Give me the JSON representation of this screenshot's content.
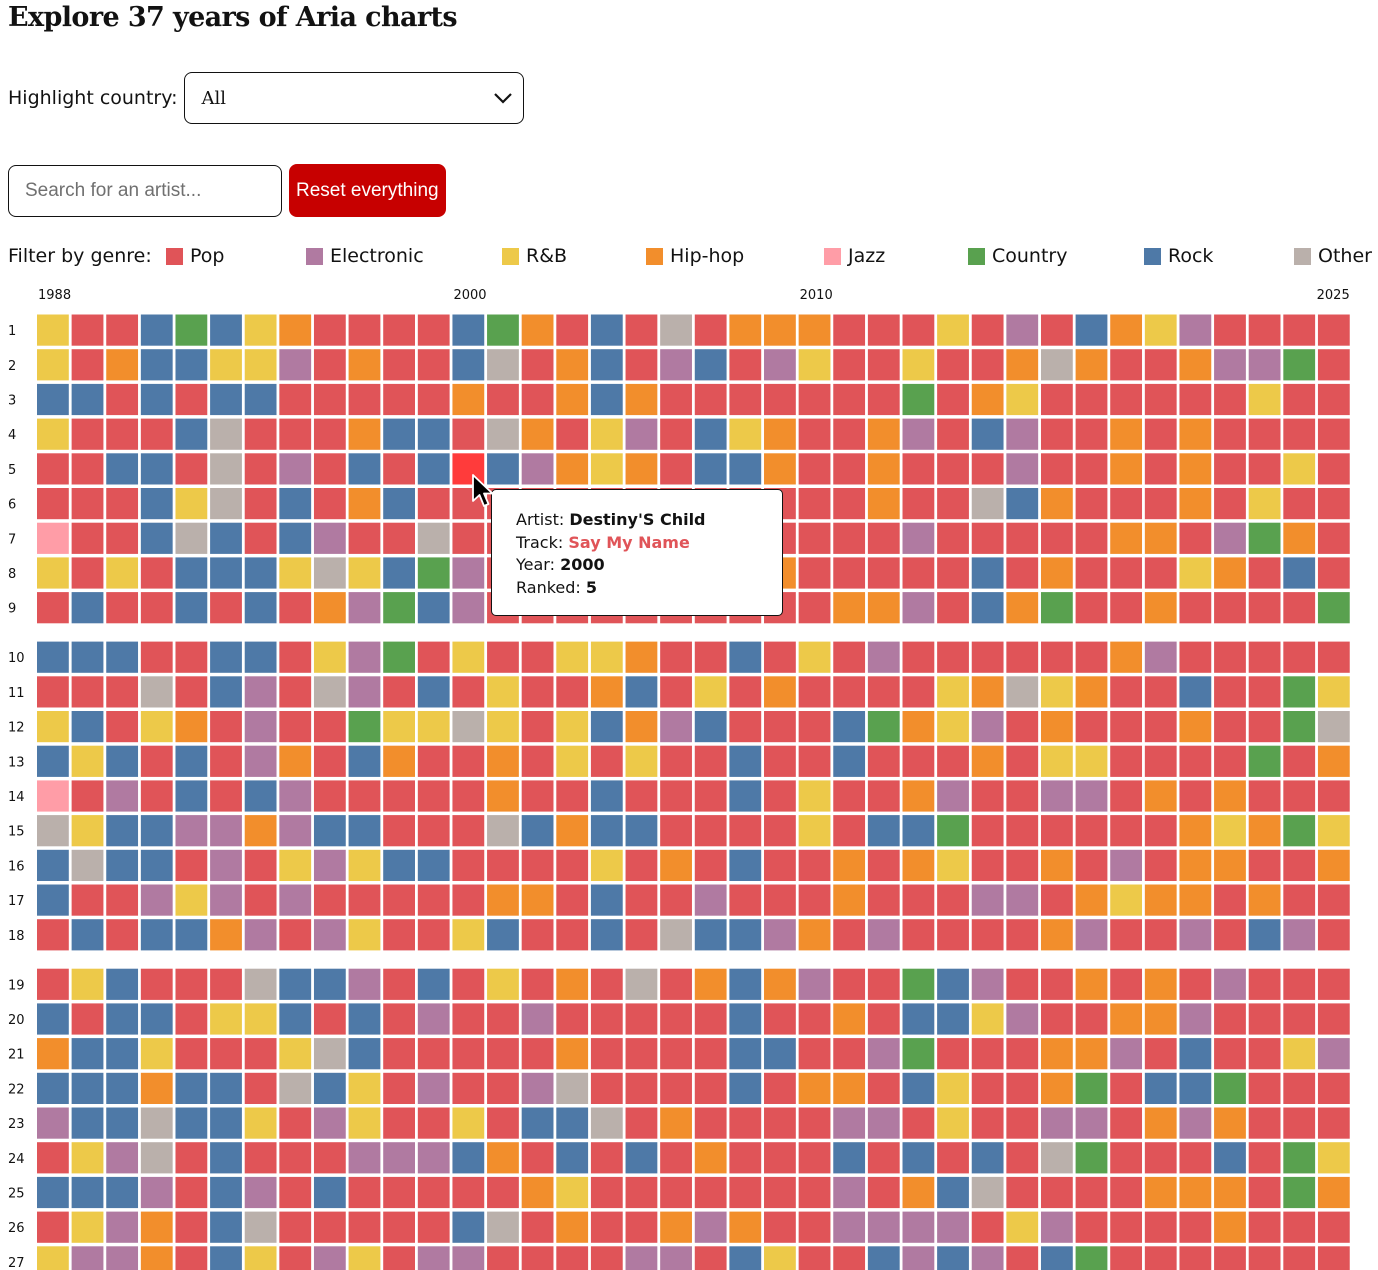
{
  "page": {
    "title": "Explore 37 years of Aria charts",
    "country_label": "Highlight country:",
    "country_selected": "All",
    "search_placeholder": "Search for an artist...",
    "reset_label": "Reset everything",
    "filter_label": "Filter by genre:"
  },
  "genres": [
    {
      "key": "P",
      "name": "Pop",
      "color": "#e05458"
    },
    {
      "key": "E",
      "name": "Electronic",
      "color": "#b07aa1"
    },
    {
      "key": "R",
      "name": "R&B",
      "color": "#edc949"
    },
    {
      "key": "H",
      "name": "Hip-hop",
      "color": "#f28e2c"
    },
    {
      "key": "J",
      "name": "Jazz",
      "color": "#ff9da7"
    },
    {
      "key": "C",
      "name": "Country",
      "color": "#59a14f"
    },
    {
      "key": "K",
      "name": "Rock",
      "color": "#4e79a7"
    },
    {
      "key": "O",
      "name": "Other",
      "color": "#bab0ab"
    }
  ],
  "chart_data": {
    "type": "heatmap",
    "title": "Explore 37 years of Aria charts",
    "x_tick_labels": [
      "1988",
      "2000",
      "2010",
      "2025"
    ],
    "y_labels": [
      "1",
      "2",
      "3",
      "4",
      "5",
      "6",
      "7",
      "8",
      "9",
      "10",
      "11",
      "12",
      "13",
      "14",
      "15",
      "16",
      "17",
      "18",
      "19",
      "20",
      "21",
      "22",
      "23",
      "24",
      "25",
      "26",
      "27"
    ],
    "columns": 38,
    "highlight_color": "#ff3b3b",
    "rows": [
      "RPPKCKRHPPPPKCHPKPOPHHHPPPRPEPKHREPPPP",
      "RPHKKRREPHPPKOPHKPEKPERPPRPPHOHPPHEECP",
      "KKPKPKKPPPPPHPPHKHPPPPPPPCPHRPPPPPPRPP",
      "RPPPKOPPPHKKPOHPREPKRHPPHEPKEPPHPHPPPP",
      "PPKKPOPEPKPKPKEHRHPKKHPPHPPPEPPHPHPPRP",
      "PPPKROPKPHKPPPPPPPPPPPPPHPPOKHPPPHPRPP",
      "JPPKOKPKEPPOPPPPPPPPPPPPPEPPPPPHHPECHP",
      "RPRPKKKRORKCEPPPPPPPPHPPPPPKPHPPPRHPKP",
      "PKPPKPKPHECKEPPPPPPPPPPHHEPKHCPPHPPPPC",
      "KKKPPKKPREcPRPPRRHPPKPRPEPPPPPPHEPPPPP",
      "PPPOPKEPOEPKPRPPHKPRPHPPPPRHORHPPKPPCR",
      "RKPRHPEPPCRRORPRKHEKPPPKCHREPHPPPHPPCO",
      "KRKPKPEHPKHPPHPRPRPPKPPKPPPHPRRPPPPCPH",
      "JPEPKPKEPPPPPHPPKPPPKPRPPHEPPEEPHPHPPP",
      "ORKKEEHEKKPPPOKHKKPPPPRPKKCPPPPPPHRHCR",
      "KOKKPEPRERKKPPPPRPHPKPPHPHRPPHPEPHHPPH",
      "KPPEREPEPPPPPHHPKPPEPPPHPPPEEPHRHHPHPP",
      "PKPKKHEPERPPRKPPKPOKKEHPEPPPPHEPPEPKEP",
      "PRKPPPOKKEPKPRPHPOPHKHEPPCKEPPHPHPEPPP",
      "KPKKPRRKPKPEPPEPPPPPKPPHPKKREPPHHEPPPP",
      "HKKRPPPROKPPPPPHPPPPKKPPECPPPHHEPKPPRE",
      "KKKHKKPOKRPEPPEOPPPPKPHHPKRPPHCPKKCPPP",
      "EKKOKKRPERPPRPKKOPHPPPPEEPRPPEEPHEHPPP",
      "PREOPKPPPEEEKHPKPKPHPPPKPKPKPOCPPPKPCR",
      "KKKEPKEPKPPPPPHRPPPPPPPEPHKOPPPPHHHPCH",
      "PREHPKOPPPPPKOPHPPHEHPPEEEEPREPPPPHPPP",
      "REEHPKRPERPEEPPPPEEPKRPPKEKEPKCPPPPPPP"
    ],
    "hover_point": {
      "column": 12,
      "row": 5
    },
    "tooltip": {
      "artist_label": "Artist:",
      "artist": "Destiny'S Child",
      "track_label": "Track:",
      "track": "Say My Name",
      "year_label": "Year:",
      "year": "2000",
      "ranked_label": "Ranked:",
      "ranked": "5"
    }
  }
}
